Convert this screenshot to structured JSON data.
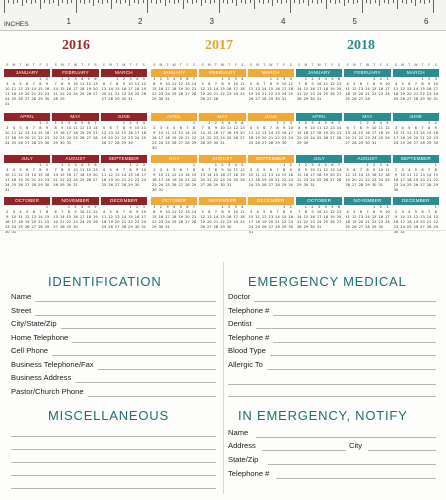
{
  "ruler": {
    "label": "INCHES",
    "numbers": [
      "1",
      "2",
      "3",
      "4",
      "5",
      "6"
    ]
  },
  "calendar": {
    "weekday_initials": [
      "S",
      "M",
      "T",
      "W",
      "T",
      "F",
      "S"
    ],
    "month_names": [
      "January",
      "February",
      "March",
      "April",
      "May",
      "June",
      "July",
      "August",
      "September",
      "October",
      "November",
      "December"
    ],
    "years": [
      {
        "label": "2016",
        "color": "#9a2a2a",
        "band_color": "#8f2528"
      },
      {
        "label": "2017",
        "color": "#e5a52a",
        "band_color": "#eea93a"
      },
      {
        "label": "2018",
        "color": "#2a8a8a",
        "band_color": "#2e8b8e"
      }
    ]
  },
  "identification": {
    "title": "IDENTIFICATION",
    "fields": [
      "Name",
      "Street",
      "City/State/Zip",
      "Home Telephone",
      "Cell Phone",
      "Business Telephone/Fax",
      "Business Address",
      "Pastor/Church Phone"
    ]
  },
  "miscellaneous": {
    "title": "MISCELLANEOUS"
  },
  "emergency_medical": {
    "title": "EMERGENCY MEDICAL",
    "fields": [
      "Doctor",
      "Telephone #",
      "Dentist",
      "Telephone #",
      "Blood Type",
      "Allergic To"
    ]
  },
  "emergency_notify": {
    "title": "IN EMERGENCY, NOTIFY",
    "name": "Name",
    "address": "Address",
    "city": "City",
    "state_zip": "State/Zip",
    "telephone": "Telephone #"
  }
}
